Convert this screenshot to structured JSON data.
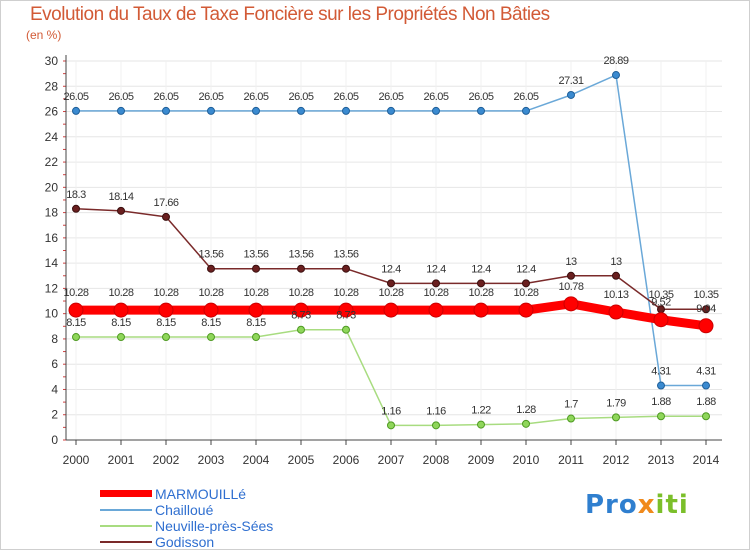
{
  "title": "Evolution du Taux de Taxe Foncière sur les Propriétés Non Bâties",
  "unit_label": "(en %)",
  "logo": {
    "part1": "Pro",
    "part2": "x",
    "part3": "iti"
  },
  "chart_data": {
    "type": "line",
    "title": "Evolution du Taux de Taxe Foncière sur les Propriétés Non Bâties",
    "ylabel": "(en %)",
    "xlabel": "",
    "ylim": [
      0,
      30
    ],
    "yticks": [
      0,
      2,
      4,
      6,
      8,
      10,
      12,
      14,
      16,
      18,
      20,
      22,
      24,
      26,
      28,
      30
    ],
    "grid": true,
    "legend_position": "bottom-left",
    "x": [
      "2000",
      "2001",
      "2002",
      "2003",
      "2004",
      "2005",
      "2006",
      "2007",
      "2008",
      "2009",
      "2010",
      "2011",
      "2012",
      "2013",
      "2014"
    ],
    "series": [
      {
        "name": "MARMOUILLé",
        "color": "#ff0000",
        "values": [
          10.28,
          10.28,
          10.28,
          10.28,
          10.28,
          10.28,
          10.28,
          10.28,
          10.28,
          10.28,
          10.28,
          10.78,
          10.13,
          9.52,
          9.04
        ],
        "labels": [
          "10.28",
          "10.28",
          "10.28",
          "10.28",
          "10.28",
          "10.28",
          "10.28",
          "10.28",
          "10.28",
          "10.28",
          "10.28",
          "10.78",
          "10.13",
          "9.52",
          "9.04"
        ]
      },
      {
        "name": "Chailloué",
        "color": "#6aa8d8",
        "values": [
          26.05,
          26.05,
          26.05,
          26.05,
          26.05,
          26.05,
          26.05,
          26.05,
          26.05,
          26.05,
          26.05,
          27.31,
          28.89,
          4.31,
          4.31
        ],
        "labels": [
          "26.05",
          "26.05",
          "26.05",
          "26.05",
          "26.05",
          "26.05",
          "26.05",
          "26.05",
          "26.05",
          "26.05",
          "26.05",
          "27.31",
          "28.89",
          "4.31",
          "4.31"
        ]
      },
      {
        "name": "Neuville-près-Sées",
        "color": "#a8dc80",
        "values": [
          8.15,
          8.15,
          8.15,
          8.15,
          8.15,
          8.73,
          8.73,
          1.16,
          1.16,
          1.22,
          1.28,
          1.7,
          1.79,
          1.88,
          1.88
        ],
        "labels": [
          "8.15",
          "8.15",
          "8.15",
          "8.15",
          "8.15",
          "8.73",
          "8.73",
          "1.16",
          "1.16",
          "1.22",
          "1.28",
          "1.7",
          "1.79",
          "1.88",
          "1.88"
        ]
      },
      {
        "name": "Godisson",
        "color": "#7a2a2a",
        "values": [
          18.3,
          18.14,
          17.66,
          13.56,
          13.56,
          13.56,
          13.56,
          12.4,
          12.4,
          12.4,
          12.4,
          13,
          13,
          10.35,
          10.35
        ],
        "labels": [
          "18.3",
          "18.14",
          "17.66",
          "13.56",
          "13.56",
          "13.56",
          "13.56",
          "12.4",
          "12.4",
          "12.4",
          "12.4",
          "13",
          "13",
          "10.35",
          "10.35"
        ]
      }
    ]
  }
}
